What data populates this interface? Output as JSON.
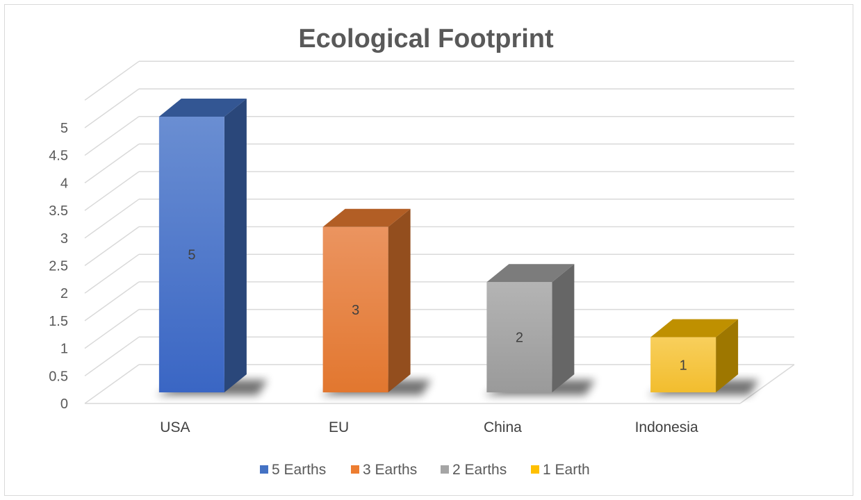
{
  "chart_data": {
    "type": "bar",
    "title": "Ecological Footprint",
    "categories": [
      "USA",
      "EU",
      "China",
      "Indonesia"
    ],
    "values": [
      5,
      3,
      2,
      1
    ],
    "data_labels": [
      "5",
      "3",
      "2",
      "1"
    ],
    "ylim": [
      0,
      5.5
    ],
    "yticks": [
      "0",
      "0.5",
      "1",
      "1.5",
      "2",
      "2.5",
      "3",
      "3.5",
      "4",
      "4.5",
      "5"
    ],
    "grid": true,
    "legend_position": "bottom",
    "legend": [
      "5 Earths",
      "3 Earths",
      "2 Earths",
      "1 Earth"
    ],
    "colors": [
      "#4472C4",
      "#ED7D31",
      "#A5A5A5",
      "#FFC000"
    ]
  }
}
